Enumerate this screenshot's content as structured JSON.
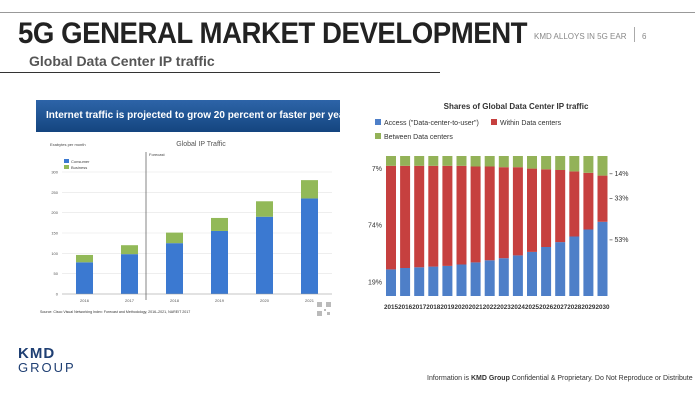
{
  "slide": {
    "title": "5G GENERAL MARKET DEVELOPMENT",
    "subtitle": "Global Data Center IP traffic",
    "header_right": "KMD ALLOYS IN 5G EAR",
    "page_number": "6",
    "logo_line1": "KMD",
    "logo_line2": "GROUP",
    "footer_prefix": "Information is ",
    "footer_brand": "KMD Group",
    "footer_suffix": " Confidential & Proprietary.  Do Not Reproduce or Distribute"
  },
  "left_panel": {
    "banner": "Internet traffic is projected to grow 20 percent or faster per year",
    "unit_label": "Exabytes per month",
    "forecast_label": "Forecast",
    "source": "Source: Cisco Visual Networking Index: Forecast and Methodology, 2016–2021, NAREIT 2017"
  },
  "colors": {
    "consumer": "#3b79d1",
    "business": "#92b958",
    "access": "#4e7fc8",
    "within": "#c6403f",
    "between": "#93b258",
    "banner_top": "#2d64a8",
    "banner_bottom": "#14457f"
  },
  "chart_data": [
    {
      "type": "bar",
      "stacked": true,
      "title": "Global IP Traffic",
      "categories": [
        "2016",
        "2017",
        "2018",
        "2019",
        "2020",
        "2021"
      ],
      "series": [
        {
          "name": "Consumer",
          "values": [
            78,
            98,
            125,
            155,
            190,
            235
          ]
        },
        {
          "name": "Business",
          "values": [
            18,
            22,
            26,
            32,
            38,
            45
          ]
        }
      ],
      "yticks": [
        0,
        50,
        100,
        150,
        200,
        250,
        300
      ],
      "ylim": [
        0,
        300
      ],
      "ylabel": "Exabytes per month",
      "forecast_start": "2017"
    },
    {
      "type": "bar",
      "stacked": true,
      "percent": true,
      "title": "Shares of Global Data Center IP traffic",
      "categories": [
        "2015",
        "2016",
        "2017",
        "2018",
        "2019",
        "2020",
        "2021",
        "2022",
        "2023",
        "2024",
        "2025",
        "2026",
        "2027",
        "2028",
        "2029",
        "2030"
      ],
      "series": [
        {
          "name": "Access (\"Data-center-to-user\")",
          "values": [
            19,
            20,
            20.5,
            21,
            21.5,
            22.5,
            24,
            25.5,
            27,
            29,
            31.5,
            35,
            38.5,
            42.5,
            47.5,
            53
          ]
        },
        {
          "name": "Within Data centers",
          "values": [
            74,
            73,
            72.5,
            72,
            71.5,
            70.5,
            68.5,
            67,
            65,
            63,
            59.5,
            55.5,
            51.5,
            46.5,
            40.5,
            33
          ]
        },
        {
          "name": "Between Data centers",
          "values": [
            7,
            7,
            7,
            7,
            7,
            7,
            7.5,
            7.5,
            8,
            8,
            9,
            9.5,
            10,
            11,
            12,
            14
          ]
        }
      ],
      "left_labels": [
        "7%",
        "74%",
        "19%"
      ],
      "right_labels": [
        "14%",
        "33%",
        "53%"
      ],
      "ylim": [
        0,
        100
      ]
    }
  ]
}
